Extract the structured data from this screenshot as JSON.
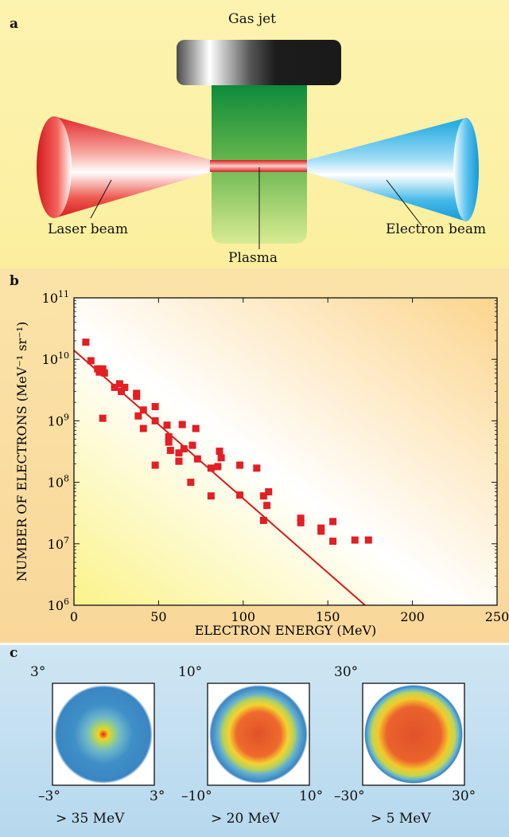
{
  "panel_a": {
    "label": "a",
    "gas_jet": "Gas jet",
    "laser_beam": "Laser beam",
    "plasma": "Plasma",
    "electron_beam": "Electron beam"
  },
  "panel_b": {
    "label": "b"
  },
  "panel_c": {
    "label": "c",
    "images": [
      {
        "top": "3°",
        "left": "–3°",
        "right": "3°",
        "caption": "> 35 MeV"
      },
      {
        "top": "10°",
        "left": "–10°",
        "right": "10°",
        "caption": "> 20 MeV"
      },
      {
        "top": "30°",
        "left": "–30°",
        "right": "30°",
        "caption": "> 5 MeV"
      }
    ]
  },
  "chart_data": {
    "type": "scatter",
    "title": "",
    "xlabel": "ELECTRON ENERGY (MeV)",
    "ylabel": "NUMBER OF ELECTRONS (MeV⁻¹ sr⁻¹)",
    "xlim": [
      0,
      250
    ],
    "ylim": [
      1000000.0,
      100000000000.0
    ],
    "yscale": "log",
    "x_ticks": [
      "0",
      "50",
      "100",
      "150",
      "200",
      "250"
    ],
    "y_ticks": [
      {
        "base": "10",
        "exp": "6"
      },
      {
        "base": "10",
        "exp": "7"
      },
      {
        "base": "10",
        "exp": "8"
      },
      {
        "base": "10",
        "exp": "9"
      },
      {
        "base": "10",
        "exp": "10"
      },
      {
        "base": "10",
        "exp": "11"
      }
    ],
    "marker_color": "#e31e24",
    "line_color": "#d7191c",
    "points": [
      [
        7,
        19000000000.0
      ],
      [
        10,
        9500000000.0
      ],
      [
        14,
        7000000000.0
      ],
      [
        15,
        6200000000.0
      ],
      [
        17,
        7000000000.0
      ],
      [
        18,
        6000000000.0
      ],
      [
        17,
        1100000000.0
      ],
      [
        24,
        3500000000.0
      ],
      [
        27,
        4000000000.0
      ],
      [
        28,
        3000000000.0
      ],
      [
        30,
        3500000000.0
      ],
      [
        37,
        2800000000.0
      ],
      [
        37,
        2500000000.0
      ],
      [
        38,
        1200000000.0
      ],
      [
        41,
        1500000000.0
      ],
      [
        41,
        750000000.0
      ],
      [
        48,
        1700000000.0
      ],
      [
        48,
        1000000000.0
      ],
      [
        48,
        190000000.0
      ],
      [
        55,
        850000000.0
      ],
      [
        56,
        550000000.0
      ],
      [
        56,
        450000000.0
      ],
      [
        57,
        330000000.0
      ],
      [
        62,
        300000000.0
      ],
      [
        62,
        220000000.0
      ],
      [
        64,
        870000000.0
      ],
      [
        65,
        350000000.0
      ],
      [
        69,
        100000000.0
      ],
      [
        70,
        400000000.0
      ],
      [
        72,
        750000000.0
      ],
      [
        73,
        240000000.0
      ],
      [
        81,
        170000000.0
      ],
      [
        81,
        60000000.0
      ],
      [
        85,
        180000000.0
      ],
      [
        86,
        320000000.0
      ],
      [
        87,
        250000000.0
      ],
      [
        98,
        190000000.0
      ],
      [
        98,
        62000000.0
      ],
      [
        108,
        170000000.0
      ],
      [
        112,
        60000000.0
      ],
      [
        112,
        24000000.0
      ],
      [
        114,
        42000000.0
      ],
      [
        115,
        70000000.0
      ],
      [
        134,
        26000000.0
      ],
      [
        134,
        22000000.0
      ],
      [
        146,
        18000000.0
      ],
      [
        146,
        16000000.0
      ],
      [
        153,
        23000000.0
      ],
      [
        153,
        11000000.0
      ],
      [
        166,
        11500000.0
      ],
      [
        174,
        11500000.0
      ]
    ],
    "fit_line": [
      [
        0,
        14000000000.0
      ],
      [
        172,
        1000000.0
      ]
    ]
  }
}
